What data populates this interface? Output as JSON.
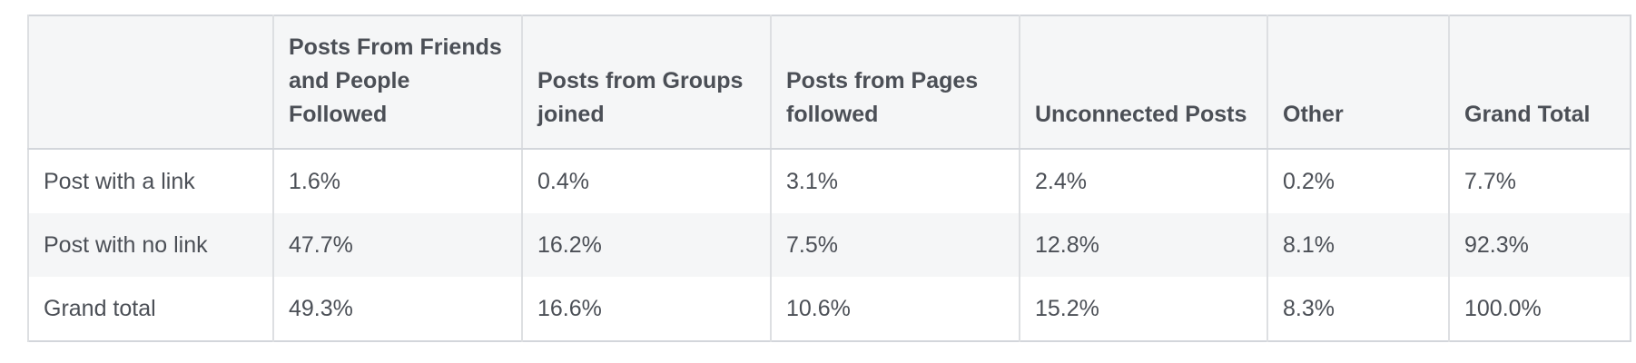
{
  "table": {
    "columns": [
      "Posts From Friends and People Followed",
      "Posts from Groups joined",
      "Posts from Pages followed",
      "Unconnected Posts",
      "Other",
      "Grand Total"
    ],
    "rows": [
      {
        "label": "Post with a link",
        "values": [
          "1.6%",
          "0.4%",
          "3.1%",
          "2.4%",
          "0.2%",
          "7.7%"
        ]
      },
      {
        "label": "Post with no link",
        "values": [
          "47.7%",
          "16.2%",
          "7.5%",
          "12.8%",
          "8.1%",
          "92.3%"
        ]
      },
      {
        "label": "Grand total",
        "values": [
          "49.3%",
          "16.6%",
          "10.6%",
          "15.2%",
          "8.3%",
          "100.0%"
        ]
      }
    ]
  }
}
